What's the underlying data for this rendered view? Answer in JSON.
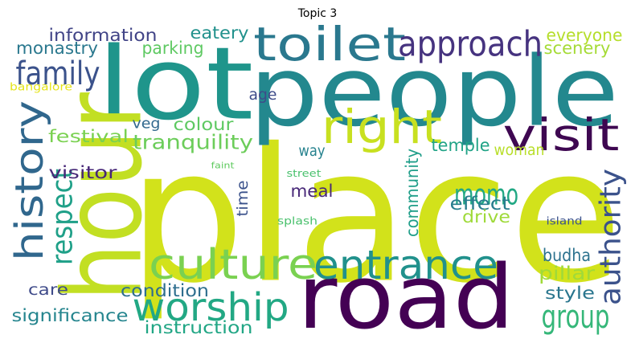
{
  "chart_data": {
    "type": "wordcloud",
    "title": "Topic 3",
    "words": [
      {
        "text": "place",
        "color": "#d2e21b"
      },
      {
        "text": "lot",
        "color": "#1f958b"
      },
      {
        "text": "people",
        "color": "#23888e"
      },
      {
        "text": "hour",
        "color": "#c2df23"
      },
      {
        "text": "road",
        "color": "#440154"
      },
      {
        "text": "toilet",
        "color": "#2a788e"
      },
      {
        "text": "approach",
        "color": "#46337f"
      },
      {
        "text": "right",
        "color": "#c8e020"
      },
      {
        "text": "visit",
        "color": "#3e0751"
      },
      {
        "text": "history",
        "color": "#30678d"
      },
      {
        "text": "family",
        "color": "#3b528b"
      },
      {
        "text": "culture",
        "color": "#7ad151"
      },
      {
        "text": "entrance",
        "color": "#21918c"
      },
      {
        "text": "worship",
        "color": "#22a884"
      },
      {
        "text": "momo",
        "color": "#22a884"
      },
      {
        "text": "authority",
        "color": "#3b528b"
      },
      {
        "text": "group",
        "color": "#35b779"
      },
      {
        "text": "respect",
        "color": "#1fa088"
      },
      {
        "text": "information",
        "color": "#414487"
      },
      {
        "text": "monastry",
        "color": "#2a788e"
      },
      {
        "text": "eatery",
        "color": "#21918c"
      },
      {
        "text": "parking",
        "color": "#5ec962"
      },
      {
        "text": "everyone",
        "color": "#b5de2b"
      },
      {
        "text": "scenery",
        "color": "#a5db36"
      },
      {
        "text": "bangalore",
        "color": "#e5e419"
      },
      {
        "text": "age",
        "color": "#3e4c8a"
      },
      {
        "text": "veg",
        "color": "#31688e"
      },
      {
        "text": "colour",
        "color": "#5ec962"
      },
      {
        "text": "festival",
        "color": "#7ad151"
      },
      {
        "text": "tranquility",
        "color": "#6ccd5a"
      },
      {
        "text": "way",
        "color": "#26828e"
      },
      {
        "text": "community",
        "color": "#1f9e89"
      },
      {
        "text": "temple",
        "color": "#20a386"
      },
      {
        "text": "woman",
        "color": "#b8de29"
      },
      {
        "text": "faint",
        "color": "#60ca60"
      },
      {
        "text": "street",
        "color": "#4ac16d"
      },
      {
        "text": "visitor",
        "color": "#482878"
      },
      {
        "text": "time",
        "color": "#3b528b"
      },
      {
        "text": "meal",
        "color": "#482878"
      },
      {
        "text": "effect",
        "color": "#287d8e"
      },
      {
        "text": "drive",
        "color": "#9fda3a"
      },
      {
        "text": "splash",
        "color": "#4ac16d"
      },
      {
        "text": "island",
        "color": "#3b528b"
      },
      {
        "text": "budha",
        "color": "#2c728e"
      },
      {
        "text": "pillar",
        "color": "#a0da39"
      },
      {
        "text": "care",
        "color": "#3e4a89"
      },
      {
        "text": "condition",
        "color": "#2e6e8e"
      },
      {
        "text": "style",
        "color": "#2a768e"
      },
      {
        "text": "significance",
        "color": "#25858e"
      },
      {
        "text": "instruction",
        "color": "#21a685"
      }
    ]
  }
}
